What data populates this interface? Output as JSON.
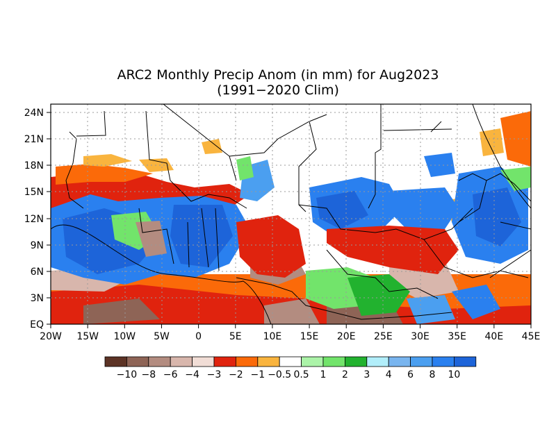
{
  "title_line1": "ARC2 Monthly Precip Anom (in mm) for Aug2023",
  "title_line2": "(1991−2020 Clim)",
  "lat_labels": [
    "24N",
    "21N",
    "18N",
    "15N",
    "12N",
    "9N",
    "6N",
    "3N",
    "EQ"
  ],
  "lon_labels": [
    "20W",
    "15W",
    "10W",
    "5W",
    "0",
    "5E",
    "10E",
    "15E",
    "20E",
    "25E",
    "30E",
    "35E",
    "40E",
    "45E"
  ],
  "legend": {
    "colors": [
      "#5c3325",
      "#8e6456",
      "#b38c80",
      "#d8b6ac",
      "#f1ddd6",
      "#e0230e",
      "#fb6a09",
      "#f9b43e",
      "#ffffff",
      "#abf3a8",
      "#72e46b",
      "#22b22f",
      "#b1eefa",
      "#79b5ef",
      "#4b9ff0",
      "#2a80ef",
      "#1d64d9"
    ],
    "labels": [
      "−10",
      "−8",
      "−6",
      "−4",
      "−3",
      "−2",
      "−1",
      "−0.5",
      "0.5",
      "1",
      "2",
      "3",
      "4",
      "6",
      "8",
      "10"
    ]
  },
  "map": {
    "lon_range": [
      -20,
      45
    ],
    "lat_range": [
      0,
      25
    ],
    "gridlines": "dotted"
  }
}
